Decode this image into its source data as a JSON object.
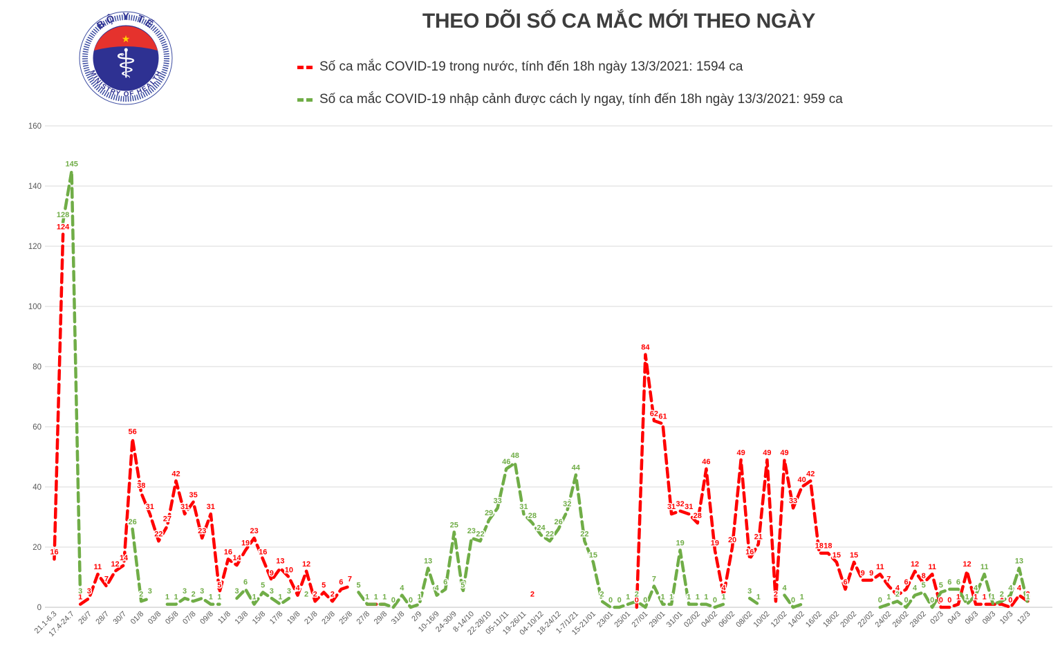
{
  "header": {
    "title": "THEO DÕI SỐ CA MẮC MỚI THEO NGÀY",
    "logo": {
      "top_text": "BỘ Y TẾ",
      "bottom_text": "MINISTRY OF HEALTH",
      "ring_color": "#3a4aa0",
      "disc_color": "#2e3192",
      "cap_color": "#e5322d",
      "star_color": "#ffd100"
    },
    "legend": [
      {
        "label": "Số ca mắc COVID-19 trong nước, tính đến 18h ngày 13/3/2021: 1594 ca",
        "color": "#ff0000"
      },
      {
        "label": "Số ca mắc COVID-19 nhập cảnh được cách ly ngay, tính đến 18h ngày 13/3/2021: 959 ca",
        "color": "#70ad47"
      }
    ]
  },
  "chart_data": {
    "type": "line",
    "title": "THEO DÕI SỐ CA MẮC MỚI THEO NGÀY",
    "xlabel": "",
    "ylabel": "",
    "ylim": [
      0,
      160
    ],
    "yticks": [
      0,
      20,
      40,
      60,
      80,
      100,
      120,
      140,
      160
    ],
    "grid": true,
    "legend_position": "top",
    "line_style": "dashed",
    "points_per_tick": 2,
    "x_tick_labels": [
      "21.1-6.3",
      "17.4-24.7",
      "26/7",
      "28/7",
      "30/7",
      "01/8",
      "03/8",
      "05/8",
      "07/8",
      "09/8",
      "11/8",
      "13/8",
      "15/8",
      "17/8",
      "19/8",
      "21/8",
      "23/8",
      "25/8",
      "27/8",
      "29/8",
      "31/8",
      "2/9",
      "10-16/9",
      "24-30/9",
      "8-14/10",
      "22-28/10",
      "05-11/11",
      "19-26/11",
      "04-10/12",
      "18-24/12",
      "1-7/1/21",
      "15-21/01",
      "23/01",
      "25/01",
      "27/01",
      "29/01",
      "31/01",
      "02/02",
      "04/02",
      "06/02",
      "08/02",
      "10/02",
      "12/02",
      "14/02",
      "16/02",
      "18/02",
      "20/02",
      "22/02",
      "24/02",
      "26/02",
      "28/02",
      "02/3",
      "04/3",
      "06/3",
      "08/3",
      "10/3",
      "12/3"
    ],
    "series": [
      {
        "name": "Số ca mắc COVID-19 trong nước",
        "color": "#ff0000",
        "values": [
          16,
          124,
          null,
          1,
          3,
          11,
          7,
          12,
          14,
          56,
          38,
          31,
          22,
          27,
          42,
          31,
          35,
          23,
          31,
          5,
          16,
          14,
          19,
          23,
          16,
          9,
          13,
          10,
          4,
          12,
          2,
          5,
          2,
          6,
          7,
          null,
          1,
          1,
          1,
          null,
          null,
          null,
          1,
          null,
          null,
          null,
          null,
          null,
          null,
          null,
          null,
          null,
          null,
          null,
          null,
          2,
          null,
          null,
          null,
          null,
          null,
          null,
          null,
          null,
          null,
          null,
          null,
          0,
          84,
          62,
          61,
          31,
          32,
          31,
          28,
          46,
          19,
          4,
          20,
          49,
          16,
          21,
          49,
          2,
          49,
          33,
          40,
          42,
          18,
          18,
          15,
          6,
          15,
          9,
          9,
          11,
          7,
          4,
          6,
          12,
          8,
          11,
          0,
          0,
          1,
          12,
          1,
          1,
          1,
          1,
          0,
          4,
          2
        ]
      },
      {
        "name": "Số ca mắc COVID-19 nhập cảnh được cách ly ngay",
        "color": "#70ad47",
        "values": [
          null,
          128,
          145,
          3,
          null,
          null,
          null,
          null,
          null,
          26,
          2,
          3,
          null,
          1,
          1,
          3,
          2,
          3,
          1,
          1,
          null,
          3,
          6,
          1,
          5,
          3,
          1,
          3,
          null,
          2,
          null,
          null,
          null,
          null,
          null,
          5,
          1,
          1,
          1,
          0,
          4,
          0,
          1,
          13,
          4,
          6,
          25,
          5,
          23,
          22,
          29,
          33,
          46,
          48,
          31,
          28,
          24,
          22,
          26,
          32,
          44,
          22,
          15,
          2,
          0,
          0,
          1,
          2,
          0,
          7,
          1,
          1,
          19,
          1,
          1,
          1,
          0,
          1,
          null,
          null,
          3,
          1,
          null,
          null,
          4,
          0,
          1,
          null,
          null,
          null,
          null,
          null,
          null,
          null,
          null,
          0,
          1,
          2,
          0,
          4,
          5,
          0,
          5,
          6,
          6,
          1,
          4,
          11,
          1,
          2,
          4,
          13,
          1
        ]
      }
    ],
    "colors": {
      "grid": "#d9d9d9",
      "axis_line": "#bfbfbf",
      "axis_text": "#595959",
      "title_text": "#3d3d3d"
    }
  }
}
